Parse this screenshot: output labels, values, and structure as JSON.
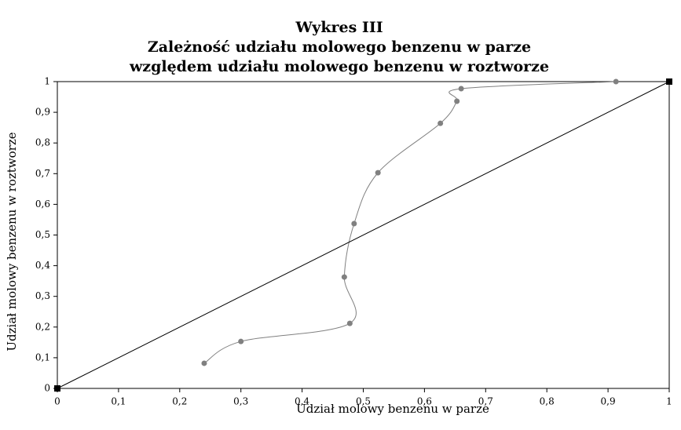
{
  "chart_data": {
    "type": "scatter",
    "title": [
      "Wykres III",
      "Zależność udziału molowego benzenu w parze",
      "względem udziału molowego benzenu w roztworze"
    ],
    "x_label": "Udział molowy benzenu w parze",
    "y_label": "Udział molowy benzenu w roztworze",
    "xlim": [
      0,
      1
    ],
    "ylim": [
      0,
      1
    ],
    "xticks": [
      0,
      {
        "value": 0.1,
        "label": "0,1"
      },
      {
        "value": 0.2,
        "label": "0,2"
      },
      {
        "value": 0.3,
        "label": "0,3"
      },
      {
        "value": 0.4,
        "label": "0,4"
      },
      {
        "value": 0.5,
        "label": "0,5"
      },
      {
        "value": 0.6,
        "label": "0,6"
      },
      {
        "value": 0.7,
        "label": "0,7"
      },
      {
        "value": 0.8,
        "label": "0,8"
      },
      {
        "value": 0.9,
        "label": "0,9"
      },
      1
    ],
    "yticks": [
      0,
      {
        "value": 0.1,
        "label": "0,1"
      },
      {
        "value": 0.2,
        "label": "0,2"
      },
      {
        "value": 0.3,
        "label": "0,3"
      },
      {
        "value": 0.4,
        "label": "0,4"
      },
      {
        "value": 0.5,
        "label": "0,5"
      },
      {
        "value": 0.6,
        "label": "0,6"
      },
      {
        "value": 0.7,
        "label": "0,7"
      },
      {
        "value": 0.8,
        "label": "0,8"
      },
      {
        "value": 0.9,
        "label": "0,9"
      },
      1
    ],
    "series": [
      {
        "color": "#808080",
        "marker": "circle",
        "smooth": true,
        "x": [
          0.24,
          0.3,
          0.478,
          0.469,
          0.485,
          0.524,
          0.626,
          0.653,
          0.66,
          0.913
        ],
        "values": [
          0.082,
          0.153,
          0.212,
          0.363,
          0.537,
          0.703,
          0.864,
          0.936,
          0.977,
          1.0
        ]
      },
      {
        "color": "#000000",
        "marker": "square",
        "smooth": false,
        "x": [
          0,
          1
        ],
        "values": [
          0,
          1
        ]
      }
    ]
  }
}
